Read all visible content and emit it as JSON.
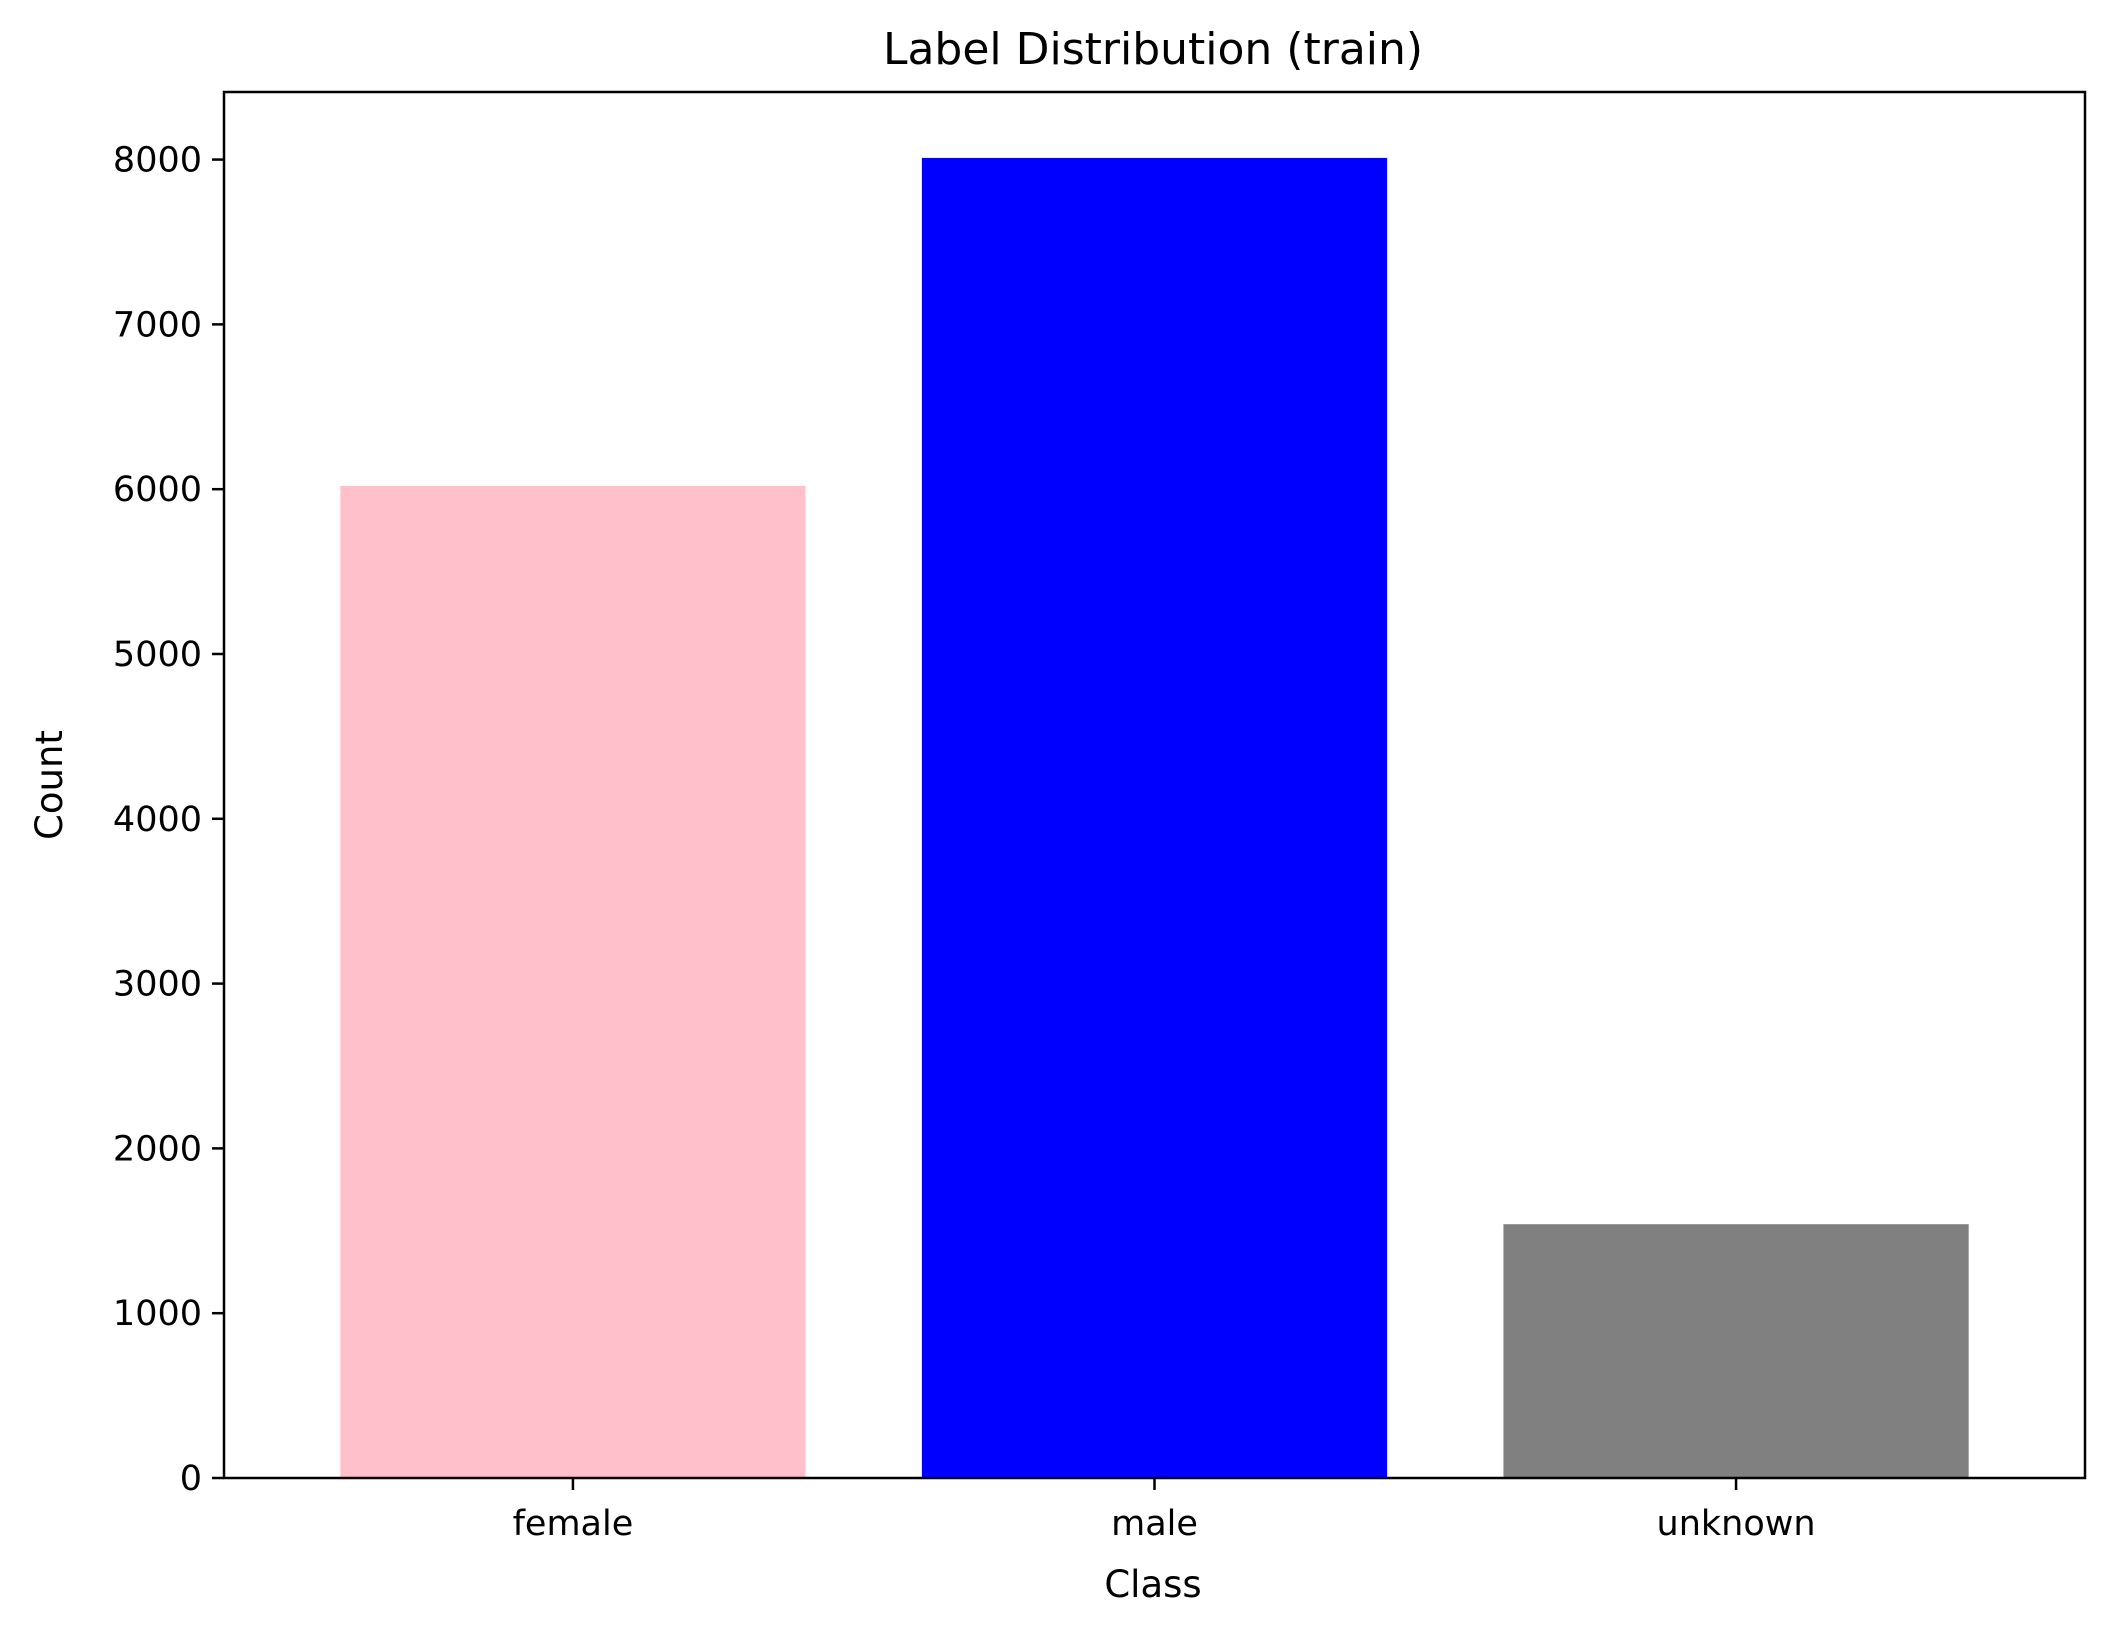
{
  "chart_data": {
    "type": "bar",
    "title": "Label Distribution (train)",
    "xlabel": "Class",
    "ylabel": "Count",
    "categories": [
      "female",
      "male",
      "unknown"
    ],
    "values": [
      6020,
      8010,
      1540
    ],
    "colors": [
      "#ffc0cb",
      "#0000ff",
      "#808080"
    ],
    "ylim": [
      0,
      8410
    ],
    "yticks": [
      0,
      1000,
      2000,
      3000,
      4000,
      5000,
      6000,
      7000,
      8000
    ],
    "ytick_labels": [
      "0",
      "1000",
      "2000",
      "3000",
      "4000",
      "5000",
      "6000",
      "7000",
      "8000"
    ],
    "grid": false,
    "legend": "none"
  }
}
